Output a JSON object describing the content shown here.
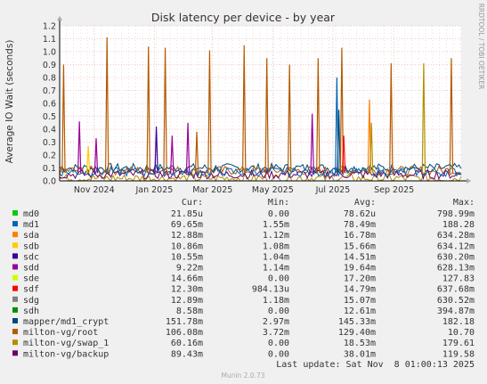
{
  "chart_data": {
    "type": "line",
    "title": "Disk latency per device - by year",
    "ylabel": "Average IO Wait (seconds)",
    "xlabel": "",
    "ylim": [
      0,
      1.2
    ],
    "yticks": [
      0.0,
      0.1,
      0.2,
      0.3,
      0.4,
      0.5,
      0.6,
      0.7,
      0.8,
      0.9,
      1.0,
      1.1,
      1.2
    ],
    "ytick_labels": [
      "0.0",
      "0.1",
      "0.2",
      "0.3",
      "0.4",
      "0.5",
      "0.6",
      "0.7",
      "0.8",
      "0.9",
      "1.0",
      "1.1",
      "1.2"
    ],
    "xlim": [
      "2024-09-27",
      "2025-11-08"
    ],
    "xticks": [
      "2024-11-01",
      "2025-01-01",
      "2025-03-01",
      "2025-05-01",
      "2025-07-01",
      "2025-09-01"
    ],
    "xtick_labels": [
      "Nov 2024",
      "Jan 2025",
      "Mar 2025",
      "May 2025",
      "Jul 2025",
      "Sep 2025"
    ],
    "grid": true,
    "columns": [
      "Cur:",
      "Min:",
      "Avg:",
      "Max:"
    ],
    "series": [
      {
        "name": "md0",
        "color": "#00cc00",
        "cur": "21.85u",
        "min": "0.00",
        "avg": "78.62u",
        "max": "798.99m"
      },
      {
        "name": "md1",
        "color": "#0066b3",
        "cur": "69.65m",
        "min": "1.55m",
        "avg": "78.49m",
        "max": "188.28"
      },
      {
        "name": "sda",
        "color": "#ff8000",
        "cur": "12.88m",
        "min": "1.12m",
        "avg": "16.78m",
        "max": "634.28m"
      },
      {
        "name": "sdb",
        "color": "#ffcc00",
        "cur": "10.86m",
        "min": "1.08m",
        "avg": "15.66m",
        "max": "634.12m"
      },
      {
        "name": "sdc",
        "color": "#330099",
        "cur": "10.55m",
        "min": "1.04m",
        "avg": "14.51m",
        "max": "630.20m"
      },
      {
        "name": "sdd",
        "color": "#990099",
        "cur": "9.22m",
        "min": "1.14m",
        "avg": "19.64m",
        "max": "628.13m"
      },
      {
        "name": "sde",
        "color": "#ccff00",
        "cur": "14.66m",
        "min": "0.00",
        "avg": "17.20m",
        "max": "127.83"
      },
      {
        "name": "sdf",
        "color": "#ff0000",
        "cur": "12.30m",
        "min": "984.13u",
        "avg": "14.79m",
        "max": "637.68m"
      },
      {
        "name": "sdg",
        "color": "#808080",
        "cur": "12.89m",
        "min": "1.18m",
        "avg": "15.07m",
        "max": "630.52m"
      },
      {
        "name": "sdh",
        "color": "#008f00",
        "cur": "8.58m",
        "min": "0.00",
        "avg": "12.61m",
        "max": "394.87m"
      },
      {
        "name": "mapper/md1_crypt",
        "color": "#00487d",
        "cur": "151.78m",
        "min": "2.97m",
        "avg": "145.33m",
        "max": "182.18"
      },
      {
        "name": "milton-vg/root",
        "color": "#b35a00",
        "cur": "106.08m",
        "min": "3.72m",
        "avg": "129.40m",
        "max": "10.70"
      },
      {
        "name": "milton-vg/swap_1",
        "color": "#b38f00",
        "cur": "60.16m",
        "min": "0.00",
        "avg": "18.53m",
        "max": "179.61"
      },
      {
        "name": "milton-vg/backup",
        "color": "#6b006b",
        "cur": "89.43m",
        "min": "0.00",
        "avg": "38.01m",
        "max": "119.58"
      }
    ],
    "baseline_series": [
      {
        "name": "mapper/md1_crypt",
        "level": 0.1
      },
      {
        "name": "milton-vg/root",
        "level": 0.08
      },
      {
        "name": "milton-vg/swap_1",
        "level": 0.02
      },
      {
        "name": "milton-vg/backup",
        "level": 0.05
      },
      {
        "name": "md1",
        "level": 0.07
      }
    ],
    "spikes": [
      {
        "date": "2024-10-01",
        "value": 0.9,
        "series": "milton-vg/root"
      },
      {
        "date": "2024-10-17",
        "value": 0.46,
        "series": "sdd"
      },
      {
        "date": "2024-10-26",
        "value": 0.27,
        "series": "sdb"
      },
      {
        "date": "2024-11-03",
        "value": 0.33,
        "series": "sdd"
      },
      {
        "date": "2024-11-14",
        "value": 1.11,
        "series": "milton-vg/root"
      },
      {
        "date": "2024-12-26",
        "value": 1.04,
        "series": "milton-vg/root"
      },
      {
        "date": "2025-01-03",
        "value": 0.42,
        "series": "sdc"
      },
      {
        "date": "2025-01-12",
        "value": 1.03,
        "series": "milton-vg/root"
      },
      {
        "date": "2025-01-19",
        "value": 0.35,
        "series": "sdd"
      },
      {
        "date": "2025-02-04",
        "value": 0.45,
        "series": "sdd"
      },
      {
        "date": "2025-02-13",
        "value": 0.38,
        "series": "milton-vg/root"
      },
      {
        "date": "2025-02-26",
        "value": 1.01,
        "series": "milton-vg/root"
      },
      {
        "date": "2025-04-02",
        "value": 1.05,
        "series": "milton-vg/root"
      },
      {
        "date": "2025-04-25",
        "value": 0.95,
        "series": "milton-vg/root"
      },
      {
        "date": "2025-05-18",
        "value": 0.9,
        "series": "milton-vg/root"
      },
      {
        "date": "2025-06-10",
        "value": 0.52,
        "series": "sdd"
      },
      {
        "date": "2025-06-16",
        "value": 0.95,
        "series": "milton-vg/root"
      },
      {
        "date": "2025-07-05",
        "value": 0.8,
        "series": "md1"
      },
      {
        "date": "2025-07-07",
        "value": 0.55,
        "series": "mapper/md1_crypt"
      },
      {
        "date": "2025-07-10",
        "value": 1.03,
        "series": "milton-vg/root"
      },
      {
        "date": "2025-07-12",
        "value": 0.35,
        "series": "sdf"
      },
      {
        "date": "2025-08-07",
        "value": 0.63,
        "series": "sda"
      },
      {
        "date": "2025-08-09",
        "value": 0.45,
        "series": "milton-vg/swap_1"
      },
      {
        "date": "2025-08-29",
        "value": 0.91,
        "series": "milton-vg/root"
      },
      {
        "date": "2025-10-01",
        "value": 0.91,
        "series": "milton-vg/swap_1"
      },
      {
        "date": "2025-10-29",
        "value": 0.95,
        "series": "milton-vg/root"
      }
    ]
  },
  "side_label": "RRDTOOL / TOBI OETIKER",
  "footer": {
    "last_update": "Last update: Sat Nov  8 01:00:13 2025",
    "version": "Munin 2.0.73"
  }
}
